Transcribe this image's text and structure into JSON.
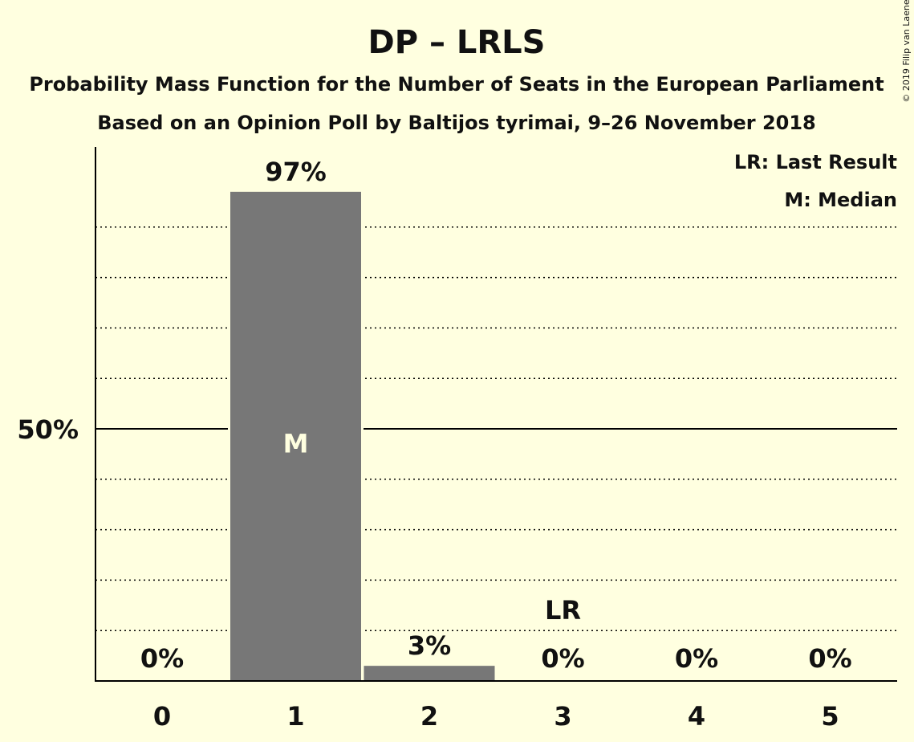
{
  "copyright": "© 2019 Filip van Laenen",
  "colors": {
    "background": "#FFFFE0",
    "bar": "#777777",
    "median_label": "#FFFFE0",
    "axis": "#000000",
    "text": "#111111"
  },
  "chart_data": {
    "type": "bar",
    "title": "DP – LRLS",
    "subtitle_1": "Probability Mass Function for the Number of Seats in the European Parliament",
    "subtitle_2": "Based on an Opinion Poll by Baltijos tyrimai, 9–26 November 2018",
    "xlabel": "",
    "ylabel": "",
    "categories": [
      "0",
      "1",
      "2",
      "3",
      "4",
      "5"
    ],
    "values": [
      0,
      97,
      3,
      0,
      0,
      0
    ],
    "value_labels": [
      "0%",
      "97%",
      "3%",
      "0%",
      "0%",
      "0%"
    ],
    "ylim": [
      0,
      105
    ],
    "y_ticks": [
      {
        "value": 50,
        "label": "50%"
      }
    ],
    "gridlines_dotted": [
      10,
      20,
      30,
      40,
      60,
      70,
      80,
      90
    ],
    "gridline_solid": 50,
    "median_index": 1,
    "median_marker": "M",
    "last_result_index": 3,
    "last_result_marker": "LR",
    "legend": [
      "LR: Last Result",
      "M: Median"
    ],
    "legend_position": "top-right"
  }
}
